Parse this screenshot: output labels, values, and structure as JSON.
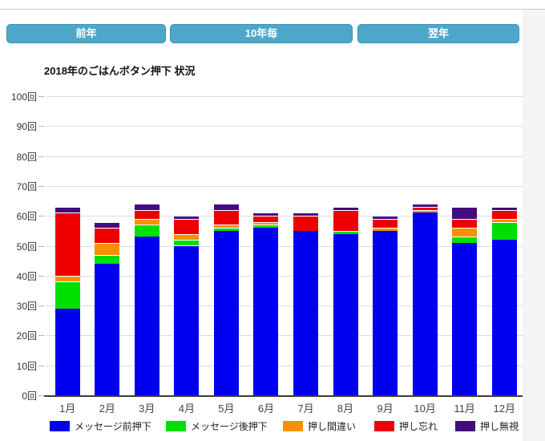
{
  "nav": {
    "buttons": [
      {
        "label": "前年"
      },
      {
        "label": "10年毎"
      },
      {
        "label": "翌年"
      }
    ]
  },
  "chart_data": {
    "type": "bar",
    "stacked": true,
    "title": "2018年のごはんボタン押下 状況",
    "categories": [
      "1月",
      "2月",
      "3月",
      "4月",
      "5月",
      "6月",
      "7月",
      "8月",
      "9月",
      "10月",
      "11月",
      "12月"
    ],
    "series": [
      {
        "name": "メッセージ前押下",
        "color": "#0000f0",
        "values": [
          29,
          44,
          53,
          50,
          55,
          56,
          55,
          54,
          55,
          61,
          51,
          52
        ]
      },
      {
        "name": "メッセージ後押下",
        "color": "#00e000",
        "values": [
          9,
          3,
          4,
          2,
          1,
          1,
          0,
          1,
          0,
          0,
          2,
          6
        ]
      },
      {
        "name": "押し間違い",
        "color": "#f89000",
        "values": [
          2,
          4,
          2,
          2,
          1,
          1,
          0,
          0,
          1,
          1,
          3,
          1
        ]
      },
      {
        "name": "押し忘れ",
        "color": "#ee0000",
        "values": [
          21,
          5,
          3,
          5,
          5,
          2,
          5,
          7,
          3,
          1,
          3,
          3
        ]
      },
      {
        "name": "押し無視",
        "color": "#430d7d",
        "values": [
          2,
          2,
          2,
          1,
          2,
          1,
          1,
          1,
          1,
          1,
          4,
          1
        ]
      }
    ],
    "y_unit": "回",
    "y_ticks": [
      0,
      10,
      20,
      30,
      40,
      50,
      60,
      70,
      80,
      90,
      100
    ],
    "ylim": [
      0,
      100
    ],
    "grid": true,
    "legend_position": "bottom"
  },
  "colors": {
    "button_bg": "#4da7cb",
    "gridline": "#dcdcdc",
    "axis": "#3c3c3c"
  }
}
